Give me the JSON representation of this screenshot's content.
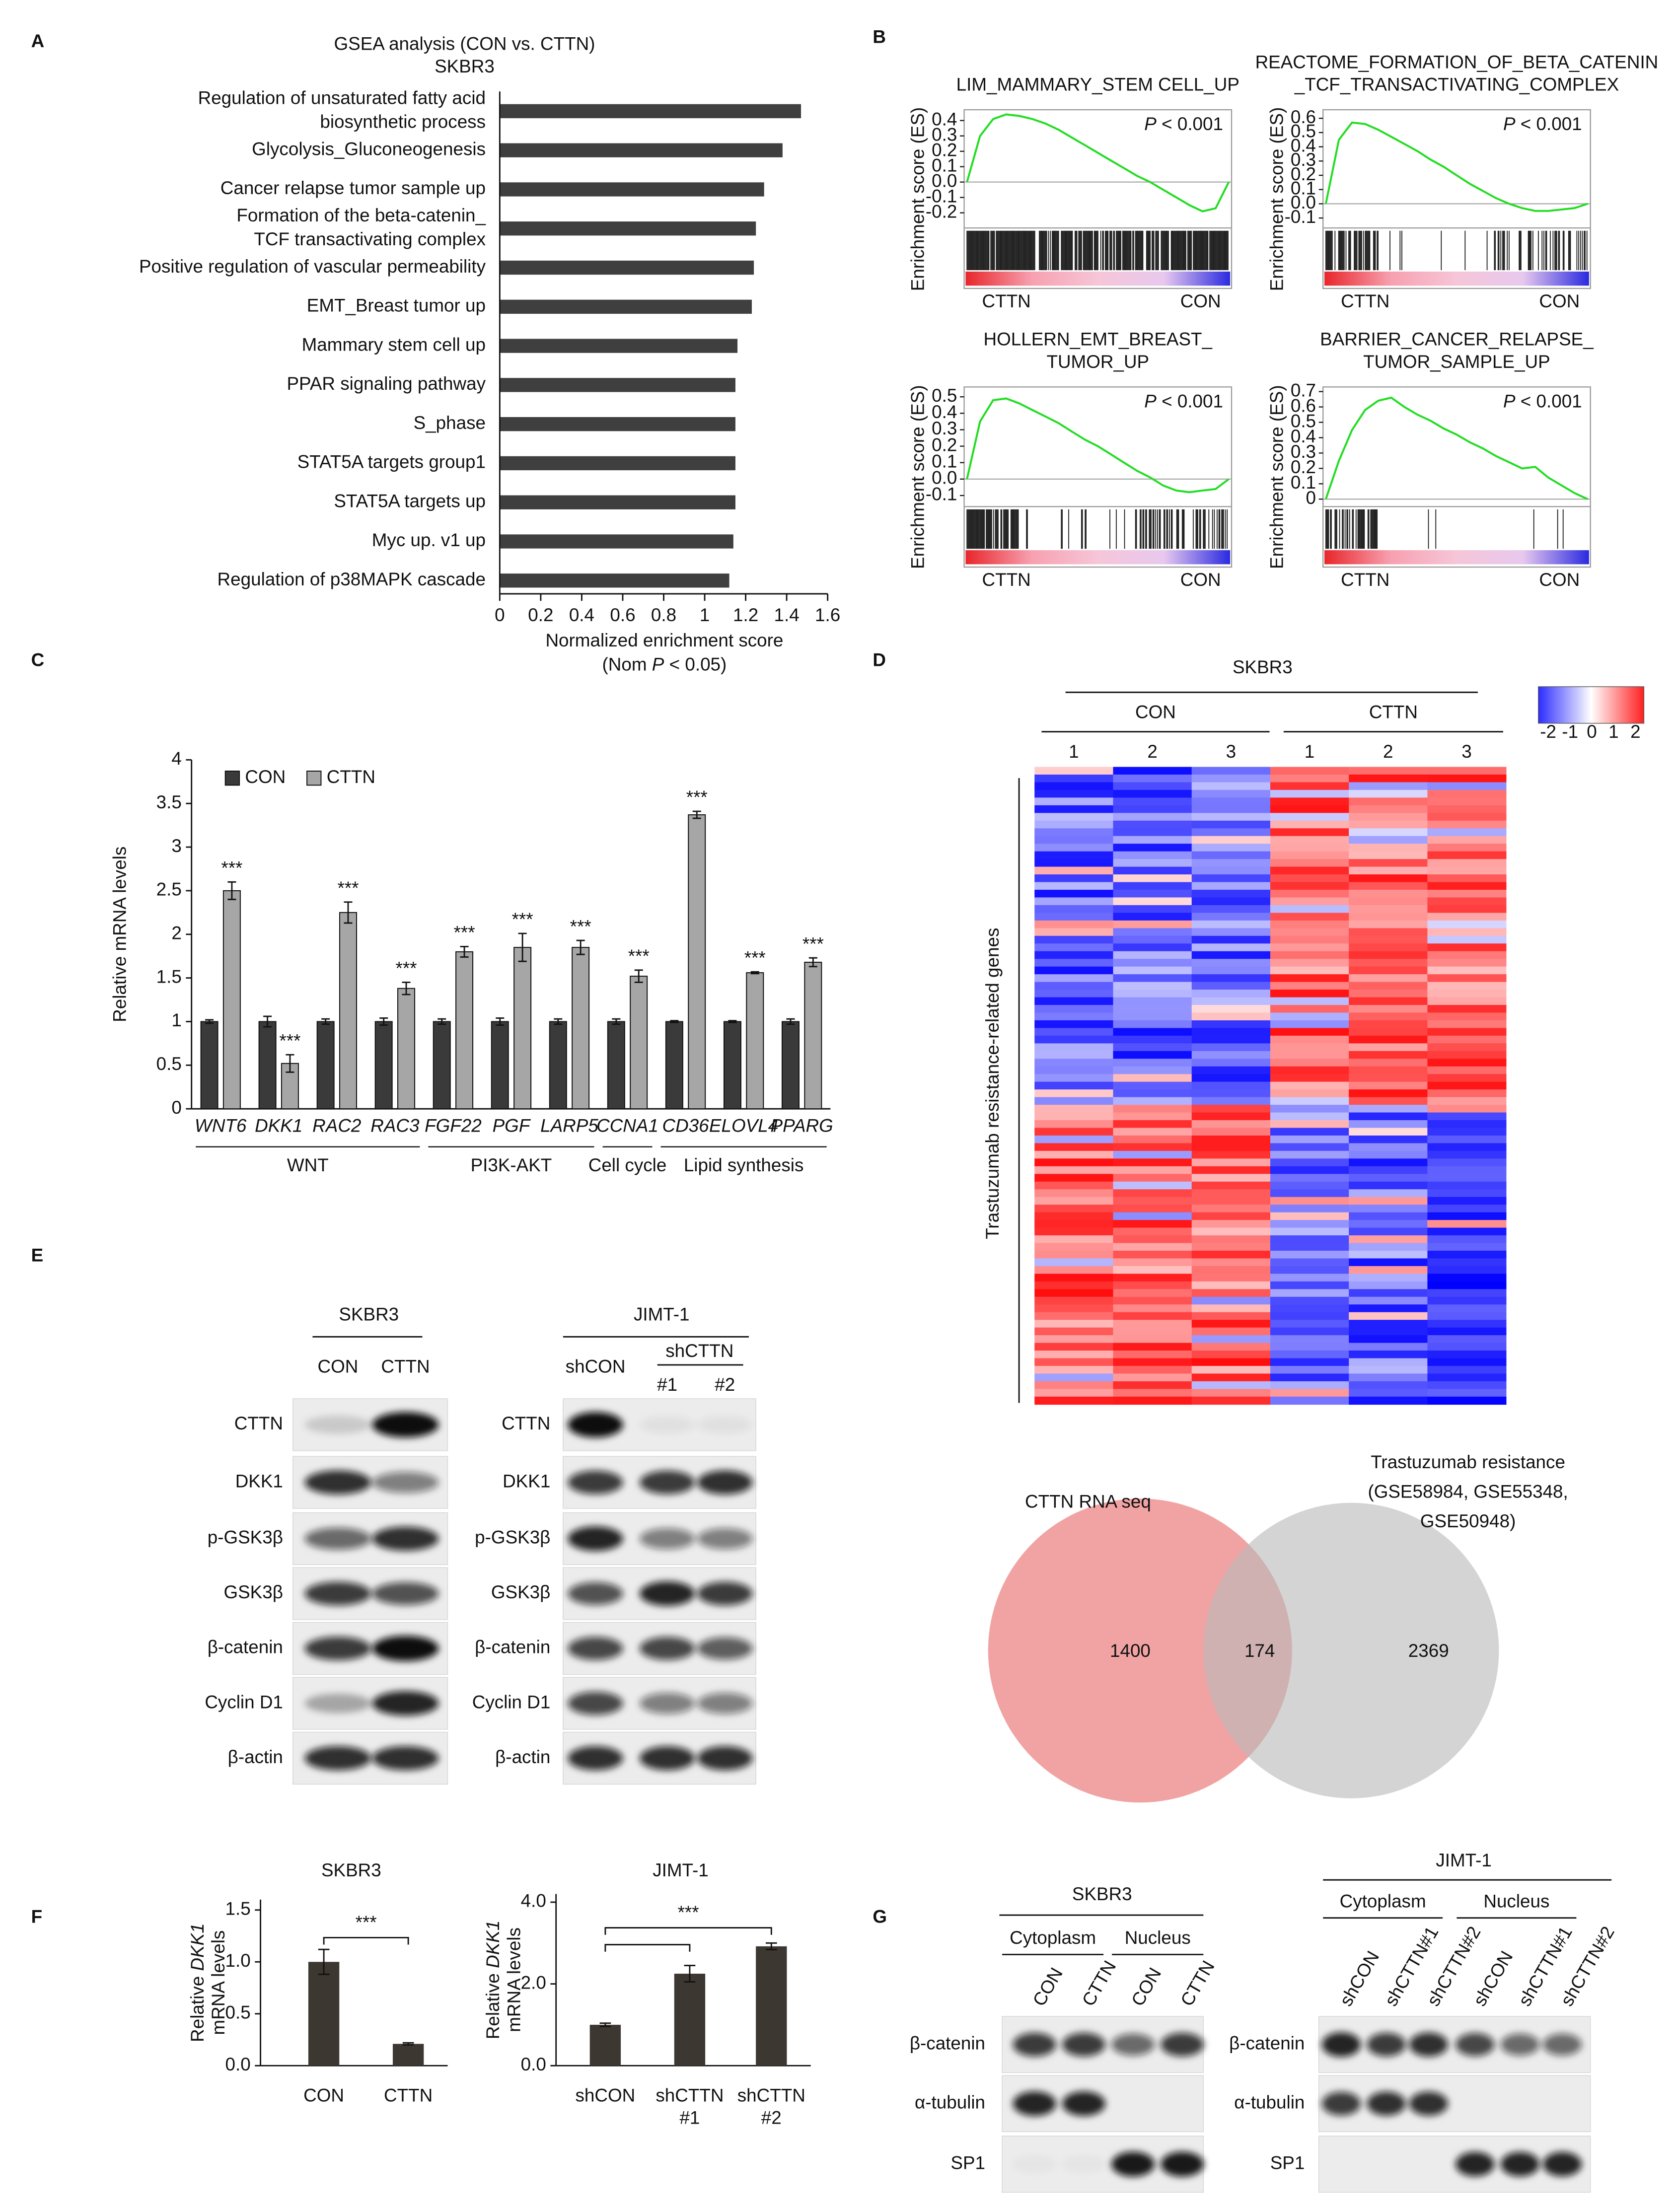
{
  "panel_labels": [
    "A",
    "B",
    "C",
    "D",
    "E",
    "F",
    "G"
  ],
  "chart_data": [
    {
      "type": "hbar",
      "title": [
        "GSEA analysis (CON vs. CTTN)",
        "SKBR3"
      ],
      "categories": [
        [
          "Regulation of unsaturated fatty acid",
          "biosynthetic process"
        ],
        [
          "Glycolysis_Gluconeogenesis"
        ],
        [
          "Cancer relapse tumor sample up"
        ],
        [
          "Formation of the beta-catenin_",
          "TCF transactivating complex"
        ],
        [
          "Positive regulation of vascular permeability"
        ],
        [
          "EMT_Breast tumor up"
        ],
        [
          "Mammary stem cell up"
        ],
        [
          "PPAR signaling pathway"
        ],
        [
          "S_phase"
        ],
        [
          "STAT5A targets group1"
        ],
        [
          "STAT5A targets up"
        ],
        [
          "Myc up. v1 up"
        ],
        [
          "Regulation of p38MAPK cascade"
        ]
      ],
      "values": [
        1.47,
        1.38,
        1.29,
        1.25,
        1.24,
        1.23,
        1.16,
        1.15,
        1.15,
        1.15,
        1.15,
        1.14,
        1.12
      ],
      "color": "#3f3f3f",
      "xlim": [
        0,
        1.6
      ],
      "xticks": [
        0,
        0.2,
        0.4,
        0.6,
        0.8,
        1,
        1.2,
        1.4,
        1.6
      ],
      "xlabel": "Normalized enrichment score",
      "xlabel_note": [
        "(Nom ",
        "P",
        " < 0.05)"
      ]
    },
    {
      "type": "line",
      "title": [
        "LIM_MAMMARY_STEM CELL_UP"
      ],
      "ylabel": "Enrichment score (ES)",
      "annotation": [
        "P",
        " < 0.001"
      ],
      "left_label": "CTTN",
      "right_label": "CON",
      "color": "#22dd22",
      "values": [
        0,
        0.3,
        0.41,
        0.44,
        0.43,
        0.41,
        0.38,
        0.34,
        0.29,
        0.24,
        0.19,
        0.14,
        0.09,
        0.04,
        0,
        -0.05,
        -0.1,
        -0.15,
        -0.19,
        -0.17,
        0
      ],
      "ylim": [
        -0.28,
        0.47
      ],
      "yticks": [
        0.4,
        0.3,
        0.2,
        0.1,
        {
          "value": 0,
          "label": "0.0"
        },
        -0.1,
        -0.2
      ]
    },
    {
      "type": "line",
      "title": [
        "REACTOME_FORMATION_OF_BETA_CATENIN",
        "_TCF_TRANSACTIVATING_COMPLEX"
      ],
      "ylabel": "Enrichment score (ES)",
      "annotation": [
        "P",
        " < 0.001"
      ],
      "left_label": "CTTN",
      "right_label": "CON",
      "color": "#22dd22",
      "values": [
        0,
        0.45,
        0.57,
        0.56,
        0.52,
        0.47,
        0.42,
        0.37,
        0.31,
        0.26,
        0.2,
        0.14,
        0.09,
        0.04,
        0,
        -0.03,
        -0.05,
        -0.05,
        -0.04,
        -0.03,
        0
      ],
      "ylim": [
        -0.15,
        0.66
      ],
      "yticks": [
        0.6,
        0.5,
        0.4,
        0.3,
        0.2,
        0.1,
        {
          "value": 0,
          "label": "0.0"
        },
        -0.1
      ]
    },
    {
      "type": "line",
      "title": [
        "HOLLERN_EMT_BREAST_",
        "TUMOR_UP"
      ],
      "ylabel": "Enrichment score (ES)",
      "annotation": [
        "P",
        " < 0.001"
      ],
      "left_label": "CTTN",
      "right_label": "CON",
      "color": "#22dd22",
      "values": [
        0,
        0.35,
        0.48,
        0.49,
        0.46,
        0.42,
        0.38,
        0.34,
        0.29,
        0.24,
        0.2,
        0.15,
        0.1,
        0.05,
        0.01,
        -0.04,
        -0.07,
        -0.08,
        -0.07,
        -0.06,
        0
      ],
      "ylim": [
        -0.15,
        0.56
      ],
      "yticks": [
        0.5,
        0.4,
        0.3,
        0.2,
        0.1,
        {
          "value": 0,
          "label": "0.0"
        },
        -0.1
      ]
    },
    {
      "type": "line",
      "title": [
        "BARRIER_CANCER_RELAPSE_",
        "TUMOR_SAMPLE_UP"
      ],
      "ylabel": "Enrichment score (ES)",
      "annotation": [
        "P",
        " < 0.001"
      ],
      "left_label": "CTTN",
      "right_label": "CON",
      "color": "#22dd22",
      "values": [
        0,
        0.25,
        0.45,
        0.58,
        0.64,
        0.66,
        0.6,
        0.55,
        0.51,
        0.46,
        0.42,
        0.37,
        0.33,
        0.28,
        0.24,
        0.2,
        0.21,
        0.14,
        0.09,
        0.04,
        0
      ],
      "ylim": [
        -0.03,
        0.73
      ],
      "yticks": [
        0.7,
        0.6,
        0.5,
        0.4,
        0.3,
        0.2,
        0.1,
        0
      ]
    },
    {
      "type": "grouped_bar",
      "ylabel": "Relative mRNA levels",
      "categories": [
        "WNT6",
        "DKK1",
        "RAC2",
        "RAC3",
        "FGF22",
        "PGF",
        "LARP5",
        "CCNA1",
        "CD36",
        "ELOVL4",
        "PPARG"
      ],
      "series": [
        {
          "name": "CON",
          "color": "#3a3a3a",
          "values": [
            1,
            1,
            1,
            1,
            1,
            1,
            1,
            1,
            1,
            1,
            1
          ],
          "errors": [
            0.02,
            0.06,
            0.03,
            0.04,
            0.03,
            0.04,
            0.03,
            0.03,
            0.01,
            0.01,
            0.03
          ]
        },
        {
          "name": "CTTN",
          "color": "#a6a6a6",
          "values": [
            2.5,
            0.52,
            2.25,
            1.38,
            1.8,
            1.85,
            1.85,
            1.52,
            3.37,
            1.56,
            1.68
          ],
          "errors": [
            0.1,
            0.1,
            0.12,
            0.07,
            0.06,
            0.16,
            0.08,
            0.07,
            0.04,
            0.01,
            0.05
          ]
        }
      ],
      "annotations": [
        "***",
        "***",
        "***",
        "***",
        "***",
        "***",
        "***",
        "***",
        "***",
        "***",
        "***"
      ],
      "groups": [
        "WNT",
        "PI3K-AKT",
        "Cell cycle",
        "Lipid synthesis"
      ],
      "ylim": [
        0,
        4
      ],
      "yticks": [
        0,
        0.5,
        1,
        1.5,
        2,
        2.5,
        3,
        3.5,
        4
      ]
    },
    {
      "type": "bar",
      "title": "SKBR3",
      "ylabel": [
        "Relative ",
        "DKK1"
      ],
      "ylabel2": "mRNA levels",
      "categories": [
        [
          "CON"
        ],
        [
          "CTTN"
        ]
      ],
      "values": [
        1.0,
        0.21
      ],
      "errors": [
        0.12,
        0.01
      ],
      "color": "#3d3731",
      "ylim": [
        0,
        1.6
      ],
      "yticks": [
        {
          "value": 0,
          "label": "0.0"
        },
        0.5,
        {
          "value": 1,
          "label": "1.0"
        },
        1.5
      ],
      "annotation": "***"
    },
    {
      "type": "bar",
      "title": "JIMT-1",
      "ylabel": [
        "Relative ",
        "DKK1"
      ],
      "ylabel2": "mRNA levels",
      "categories": [
        [
          "shCON"
        ],
        [
          "shCTTN",
          "#1"
        ],
        [
          "shCTTN",
          "#2"
        ]
      ],
      "values": [
        1.0,
        2.25,
        2.92
      ],
      "errors": [
        0.04,
        0.2,
        0.08
      ],
      "color": "#3d3731",
      "ylim": [
        0,
        4.2
      ],
      "yticks": [
        {
          "value": 0,
          "label": "0.0"
        },
        {
          "value": 2,
          "label": "2.0"
        },
        {
          "value": 4,
          "label": "4.0"
        }
      ],
      "annotation": "***"
    }
  ],
  "heatmap": {
    "title": "SKBR3",
    "groups": [
      "CON",
      "CTTN"
    ],
    "columns": [
      "1",
      "2",
      "3",
      "1",
      "2",
      "3"
    ],
    "ylabel": "Trastuzumab resistance-related genes",
    "scale_ticks": [
      "-2",
      "-1",
      "0",
      "1",
      "2"
    ]
  },
  "venn": {
    "left_title": "CTTN RNA seq",
    "right_title": [
      "Trastuzumab resistance",
      "(GSE58984, GSE55348,",
      "GSE50948)"
    ],
    "left_only": "1400",
    "overlap": "174",
    "right_only": "2369"
  },
  "blot_e": {
    "left": {
      "title": "SKBR3",
      "lanes": [
        "CON",
        "CTTN"
      ],
      "rows": [
        "CTTN",
        "DKK1",
        "p-GSK3β",
        "GSK3β",
        "β-catenin",
        "Cyclin D1",
        "β-actin"
      ]
    },
    "right": {
      "title": "JIMT-1",
      "lanes": [
        "shCON"
      ],
      "group": "shCTTN",
      "sublanes": [
        "#1",
        "#2"
      ],
      "rows": [
        "CTTN",
        "DKK1",
        "p-GSK3β",
        "GSK3β",
        "β-catenin",
        "Cyclin D1",
        "β-actin"
      ]
    }
  },
  "blot_g": {
    "left": {
      "title": "SKBR3",
      "fractions": [
        "Cytoplasm",
        "Nucleus"
      ],
      "lanes": [
        "CON",
        "CTTN",
        "CON",
        "CTTN"
      ],
      "rows": [
        "β-catenin",
        "α-tubulin",
        "SP1"
      ]
    },
    "right": {
      "title": "JIMT-1",
      "fractions": [
        "Cytoplasm",
        "Nucleus"
      ],
      "lanes": [
        "shCON",
        "shCTTN#1",
        "shCTTN#2",
        "shCON",
        "shCTTN#1",
        "shCTTN#2"
      ],
      "rows": [
        "β-catenin",
        "α-tubulin",
        "SP1"
      ]
    }
  }
}
